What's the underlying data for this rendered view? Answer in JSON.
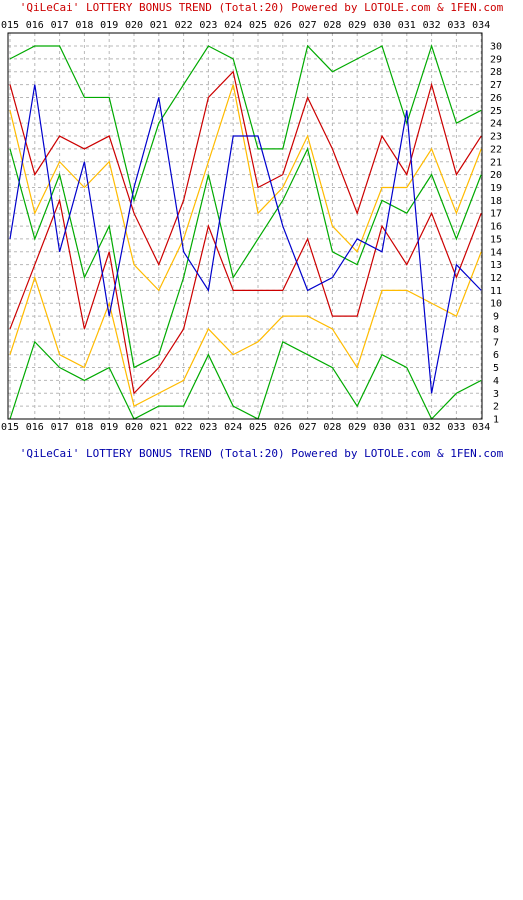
{
  "title_top": "'QiLeCai' LOTTERY BONUS TREND (Total:20)  Powered by LOTOLE.com & 1FEN.com",
  "title_bottom": "'QiLeCai' LOTTERY BONUS TREND (Total:20)  Powered by LOTOLE.com & 1FEN.com",
  "chart_data": {
    "type": "line",
    "categories": [
      "015",
      "016",
      "017",
      "018",
      "019",
      "020",
      "021",
      "022",
      "023",
      "024",
      "025",
      "026",
      "027",
      "028",
      "029",
      "030",
      "031",
      "032",
      "033",
      "034"
    ],
    "ylim": [
      1,
      30
    ],
    "y_ticks": [
      1,
      2,
      3,
      4,
      5,
      6,
      7,
      8,
      9,
      10,
      11,
      12,
      13,
      14,
      15,
      16,
      17,
      18,
      19,
      20,
      21,
      22,
      23,
      24,
      25,
      26,
      27,
      28,
      29,
      30
    ],
    "grid": true,
    "y_axis_position": "right",
    "x_tick_position": "top-and-bottom",
    "series": [
      {
        "color": "#00aa00",
        "values": [
          1,
          7,
          5,
          4,
          5,
          1,
          2,
          2,
          6,
          2,
          1,
          7,
          6,
          5,
          2,
          6,
          5,
          1,
          3,
          4
        ]
      },
      {
        "color": "#ffbb00",
        "values": [
          6,
          12,
          6,
          5,
          10,
          2,
          3,
          4,
          8,
          6,
          7,
          9,
          9,
          8,
          5,
          11,
          11,
          10,
          9,
          14
        ]
      },
      {
        "color": "#cc0000",
        "values": [
          8,
          13,
          18,
          8,
          14,
          3,
          5,
          8,
          16,
          11,
          11,
          11,
          15,
          9,
          9,
          16,
          13,
          17,
          12,
          17
        ]
      },
      {
        "color": "#00aa00",
        "values": [
          22,
          15,
          20,
          12,
          16,
          5,
          6,
          12,
          20,
          12,
          15,
          18,
          22,
          14,
          13,
          18,
          17,
          20,
          15,
          20
        ]
      },
      {
        "color": "#ffbb00",
        "values": [
          25,
          17,
          21,
          19,
          21,
          13,
          11,
          15,
          21,
          27,
          17,
          19,
          23,
          16,
          14,
          19,
          19,
          22,
          17,
          22
        ]
      },
      {
        "color": "#cc0000",
        "values": [
          27,
          20,
          23,
          22,
          23,
          17,
          13,
          18,
          26,
          28,
          19,
          20,
          26,
          22,
          17,
          23,
          20,
          27,
          20,
          23
        ]
      },
      {
        "color": "#00aa00",
        "values": [
          29,
          30,
          30,
          26,
          26,
          18,
          24,
          27,
          30,
          29,
          22,
          22,
          30,
          28,
          29,
          30,
          24,
          30,
          24,
          25
        ]
      },
      {
        "color": "#0000cc",
        "values": [
          15,
          27,
          14,
          21,
          9,
          19,
          26,
          14,
          11,
          23,
          23,
          16,
          11,
          12,
          15,
          14,
          25,
          3,
          13,
          11
        ]
      }
    ]
  }
}
